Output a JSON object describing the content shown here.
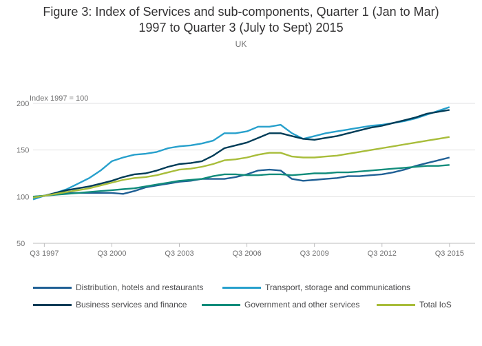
{
  "title_line1": "Figure 3: Index of Services and sub-components, Quarter 1 (Jan to Mar)",
  "title_line2": "1997 to Quarter 3 (July to Sept) 2015",
  "subtitle": "UK",
  "colors": {
    "Distribution, hotels and restaurants": "#206095",
    "Transport, storage and communications": "#27a0cc",
    "Business services and finance": "#003c57",
    "Government and other services": "#118c7b",
    "Total IoS": "#a8bd3a"
  },
  "chart_data": {
    "type": "line",
    "ylabel": "Index 1997 = 100",
    "ylim": [
      50,
      200
    ],
    "yticks": [
      50,
      100,
      150,
      200
    ],
    "xlim": [
      1997.0,
      2015.75
    ],
    "xticks": [
      {
        "x": 1997.5,
        "label": "Q3 1997"
      },
      {
        "x": 2000.5,
        "label": "Q3 2000"
      },
      {
        "x": 2003.5,
        "label": "Q3 2003"
      },
      {
        "x": 2006.5,
        "label": "Q3 2006"
      },
      {
        "x": 2009.5,
        "label": "Q3 2009"
      },
      {
        "x": 2012.5,
        "label": "Q3 2012"
      },
      {
        "x": 2015.5,
        "label": "Q3 2015"
      }
    ],
    "grid": true,
    "legend_position": "bottom",
    "x": [
      1997.0,
      1997.5,
      1998.0,
      1998.5,
      1999.0,
      1999.5,
      2000.0,
      2000.5,
      2001.0,
      2001.5,
      2002.0,
      2002.5,
      2003.0,
      2003.5,
      2004.0,
      2004.5,
      2005.0,
      2005.5,
      2006.0,
      2006.5,
      2007.0,
      2007.5,
      2008.0,
      2008.5,
      2009.0,
      2009.5,
      2010.0,
      2010.5,
      2011.0,
      2011.5,
      2012.0,
      2012.5,
      2013.0,
      2013.5,
      2014.0,
      2014.5,
      2015.0,
      2015.5
    ],
    "series": [
      {
        "name": "Distribution, hotels and restaurants",
        "values": [
          100,
          101,
          103,
          104,
          104,
          104,
          104,
          104,
          103,
          106,
          110,
          112,
          114,
          116,
          117,
          119,
          119,
          119,
          121,
          124,
          128,
          129,
          128,
          119,
          117,
          118,
          119,
          120,
          122,
          122,
          123,
          124,
          126,
          129,
          133,
          136,
          139,
          142
        ]
      },
      {
        "name": "Transport, storage and communications",
        "values": [
          97,
          101,
          104,
          108,
          114,
          120,
          128,
          138,
          142,
          145,
          146,
          148,
          152,
          154,
          155,
          157,
          160,
          168,
          168,
          170,
          175,
          175,
          177,
          168,
          162,
          165,
          168,
          170,
          172,
          174,
          176,
          177,
          179,
          181,
          184,
          188,
          192,
          196
        ]
      },
      {
        "name": "Business services and finance",
        "values": [
          99,
          101,
          104,
          107,
          109,
          111,
          114,
          117,
          121,
          124,
          125,
          128,
          132,
          135,
          136,
          138,
          144,
          152,
          155,
          158,
          163,
          168,
          168,
          165,
          162,
          161,
          163,
          165,
          168,
          171,
          174,
          176,
          179,
          182,
          185,
          189,
          191,
          193
        ]
      },
      {
        "name": "Government and other services",
        "values": [
          100,
          101,
          102,
          103,
          104,
          105,
          106,
          107,
          108,
          109,
          111,
          113,
          115,
          117,
          118,
          119,
          122,
          124,
          124,
          123,
          123,
          124,
          124,
          123,
          124,
          125,
          125,
          126,
          126,
          127,
          128,
          129,
          130,
          131,
          132,
          133,
          133,
          134
        ]
      },
      {
        "name": "Total IoS",
        "values": [
          99,
          101,
          103,
          105,
          107,
          109,
          112,
          115,
          118,
          120,
          121,
          123,
          126,
          129,
          130,
          132,
          135,
          139,
          140,
          142,
          145,
          147,
          147,
          143,
          142,
          142,
          143,
          144,
          146,
          148,
          150,
          152,
          154,
          156,
          158,
          160,
          162,
          164
        ]
      }
    ]
  },
  "legend": [
    {
      "label": "Distribution, hotels and restaurants"
    },
    {
      "label": "Transport, storage and communications"
    },
    {
      "label": "Business services and finance"
    },
    {
      "label": "Government and other services"
    },
    {
      "label": "Total IoS"
    }
  ]
}
